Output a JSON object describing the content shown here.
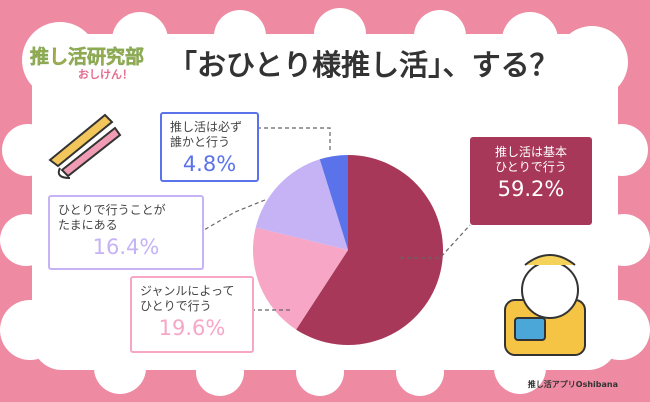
{
  "chart_data": {
    "type": "pie",
    "title": "「おひとり様推し活」、する？",
    "logo": "推し活研究部",
    "logo_sub": "おしけん！",
    "credit": "推し活アプリOshibana",
    "categories": [
      "推し活は基本\nひとりで行う",
      "ジャンルによって\nひとりで行う",
      "ひとりで行うことが\nたまにある",
      "推し活は必ず\n誰かと行う"
    ],
    "values": [
      59.2,
      19.6,
      16.4,
      4.8
    ],
    "value_labels": [
      "59.2%",
      "19.6%",
      "16.4%",
      "4.8%"
    ],
    "colors": [
      "#a8385a",
      "#f7a6c6",
      "#c5b3f5",
      "#5b73ea"
    ]
  }
}
